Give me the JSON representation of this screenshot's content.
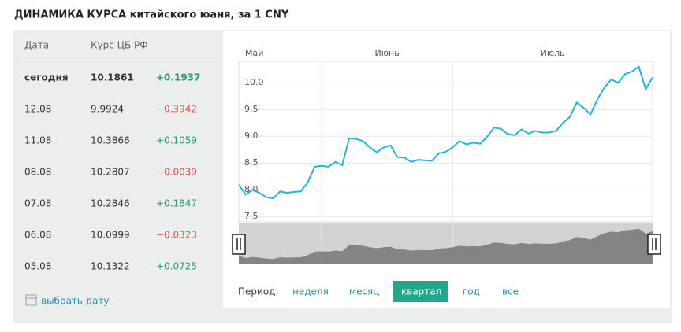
{
  "title": "ДИНАМИКА КУРСА китайского юаня, за 1 CNY",
  "table": {
    "header": [
      "Дата",
      "Курс ЦБ РФ"
    ],
    "rows": [
      [
        "сегодня",
        "10.1861",
        "+0.1937"
      ],
      [
        "12.08",
        "9.9924",
        "−0.3942"
      ],
      [
        "11.08",
        "10.3866",
        "+0.1059"
      ],
      [
        "08.08",
        "10.2807",
        "−0.0039"
      ],
      [
        "07.08",
        "10.2846",
        "+0.1847"
      ],
      [
        "06.08",
        "10.0999",
        "−0.0323"
      ],
      [
        "05.08",
        "10.1322",
        "+0.0725"
      ]
    ]
  },
  "pick_date": "выбрать дату",
  "period": {
    "label": "Период:",
    "options": [
      "неделя",
      "месяц",
      "квартал",
      "год",
      "все"
    ],
    "active": 2
  },
  "chart_data": {
    "type": "line",
    "color": "#29b3d6",
    "values": [
      8.09,
      7.91,
      8.0,
      7.94,
      7.86,
      7.84,
      7.97,
      7.94,
      7.96,
      7.97,
      8.14,
      8.43,
      8.45,
      8.43,
      8.52,
      8.46,
      8.96,
      8.95,
      8.91,
      8.79,
      8.7,
      8.79,
      8.83,
      8.61,
      8.6,
      8.52,
      8.56,
      8.55,
      8.54,
      8.68,
      8.71,
      8.79,
      8.91,
      8.85,
      8.88,
      8.86,
      8.99,
      9.16,
      9.14,
      9.04,
      9.02,
      9.13,
      9.05,
      9.1,
      9.07,
      9.07,
      9.1,
      9.25,
      9.36,
      9.63,
      9.53,
      9.41,
      9.69,
      9.91,
      10.06,
      10.0,
      10.16,
      10.21,
      10.3,
      9.88,
      10.1
    ],
    "xlim": [
      0,
      60
    ],
    "xticks": [
      {
        "value": 0,
        "label": "Май"
      },
      {
        "value": 12,
        "label": "Июнь"
      },
      {
        "value": 31,
        "label": "Июль"
      }
    ],
    "ylim": [
      7.4,
      10.4
    ],
    "yticks": [
      7.5,
      {
        "value": 8,
        "label": "8.0"
      },
      8.5,
      {
        "value": 9,
        "label": "9.0"
      },
      9.5,
      {
        "value": 10,
        "label": "10.0"
      }
    ],
    "grid": true
  }
}
